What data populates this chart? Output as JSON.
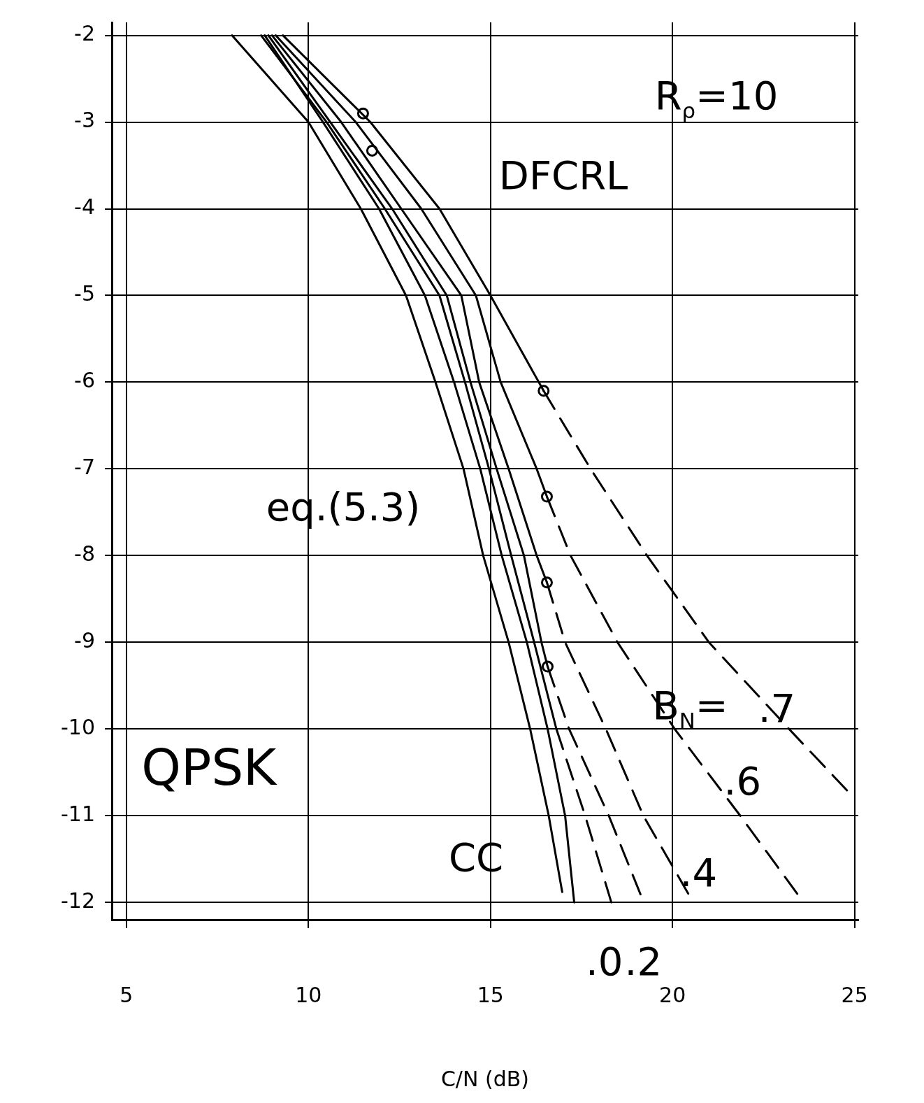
{
  "chart_data": {
    "type": "line",
    "xlabel": "C/N (dB)",
    "xlim": [
      4.6,
      25.1
    ],
    "ylim": [
      -12.2,
      -1.85
    ],
    "xticks": [
      5,
      10,
      15,
      20,
      25
    ],
    "yticks": [
      -2,
      -3,
      -4,
      -5,
      -6,
      -7,
      -8,
      -9,
      -10,
      -11,
      -12
    ],
    "grid": true,
    "marker": "none",
    "line_style": "solid",
    "annotations": [
      "R$_{ρ}$=10",
      "QPSK",
      "DFCRL",
      "eq.(5.3)",
      "CC",
      "B$_{N}$=",
      ".7",
      ".6",
      ".4",
      ".0",
      ".2"
    ],
    "series": [
      {
        "color": "#000000",
        "x": [
          7.9,
          10.0,
          11.44,
          12.68,
          13.49,
          14.26,
          14.8,
          15.5,
          16.09,
          16.6,
          16.97
        ],
        "values": [
          -2,
          -3,
          -4,
          -5,
          -6,
          -7,
          -8,
          -9,
          -10,
          -11,
          -11.88
        ]
      },
      {
        "color": "#000000",
        "x": [
          8.8,
          10.4,
          11.94,
          13.2,
          14.0,
          14.72,
          15.31,
          16.0,
          16.57,
          17.05,
          17.3
        ],
        "values": [
          -2,
          -3,
          -4,
          -5,
          -6,
          -7,
          -8,
          -9,
          -10,
          -11,
          -12
        ]
      },
      {
        "color": "#000000",
        "x": [
          8.7,
          10.5,
          12.1,
          13.6,
          14.3,
          14.96,
          15.57,
          16.2,
          16.81
        ],
        "values": [
          -2,
          -3,
          -4,
          -5,
          -6,
          -7,
          -8,
          -9,
          -10
        ]
      },
      {
        "color": "#000000",
        "line_style": "dashed",
        "x": [
          16.81,
          17.6,
          18.32
        ],
        "values": [
          -10,
          -11,
          -12
        ]
      },
      {
        "color": "#000000",
        "x": [
          8.9,
          10.6,
          12.3,
          13.8,
          14.45,
          15.17,
          15.92,
          16.4,
          16.57
        ],
        "values": [
          -2,
          -3,
          -4,
          -5,
          -6,
          -7,
          -8,
          -9,
          -9.28
        ]
      },
      {
        "color": "#000000",
        "line_style": "dashed",
        "x": [
          16.57,
          17.16,
          18.25,
          19.21
        ],
        "values": [
          -9.28,
          -10,
          -11,
          -12
        ]
      },
      {
        "color": "#000000",
        "x": [
          9.0,
          10.9,
          12.55,
          14.2,
          14.69,
          15.5,
          16.27,
          16.55
        ],
        "values": [
          -2,
          -3,
          -4,
          -5,
          -6,
          -7,
          -8,
          -8.31
        ]
      },
      {
        "color": "#000000",
        "line_style": "dashed",
        "x": [
          16.55,
          17.05,
          18.17,
          19.2,
          20.57
        ],
        "values": [
          -8.31,
          -9,
          -10,
          -11,
          -12
        ]
      },
      {
        "color": "#000000",
        "x": [
          9.1,
          11.3,
          13.1,
          14.6,
          15.28,
          16.27,
          16.55
        ],
        "values": [
          -2,
          -3,
          -4,
          -5,
          -6,
          -7,
          -7.32
        ]
      },
      {
        "color": "#000000",
        "line_style": "dashed",
        "x": [
          16.55,
          17.2,
          18.49,
          20.06,
          21.86,
          23.6
        ],
        "values": [
          -7.32,
          -8,
          -9,
          -10,
          -11,
          -12
        ]
      },
      {
        "color": "#000000",
        "x": [
          9.3,
          11.7,
          13.6,
          15.0,
          16.46
        ],
        "values": [
          -2,
          -3,
          -4,
          -5,
          -6.1
        ]
      },
      {
        "color": "#000000",
        "line_style": "dashed",
        "x": [
          16.46,
          17.75,
          19.3,
          21.0,
          23.2,
          25.0
        ],
        "values": [
          -6.1,
          -7,
          -8,
          -9,
          -10,
          -10.8
        ]
      },
      {
        "type": "scatter",
        "marker": "circle",
        "color": "#000000",
        "x": [
          11.5,
          11.75,
          16.46,
          16.55,
          16.55,
          16.57
        ],
        "values": [
          -2.9,
          -3.33,
          -6.1,
          -7.32,
          -8.31,
          -9.28
        ]
      }
    ]
  }
}
